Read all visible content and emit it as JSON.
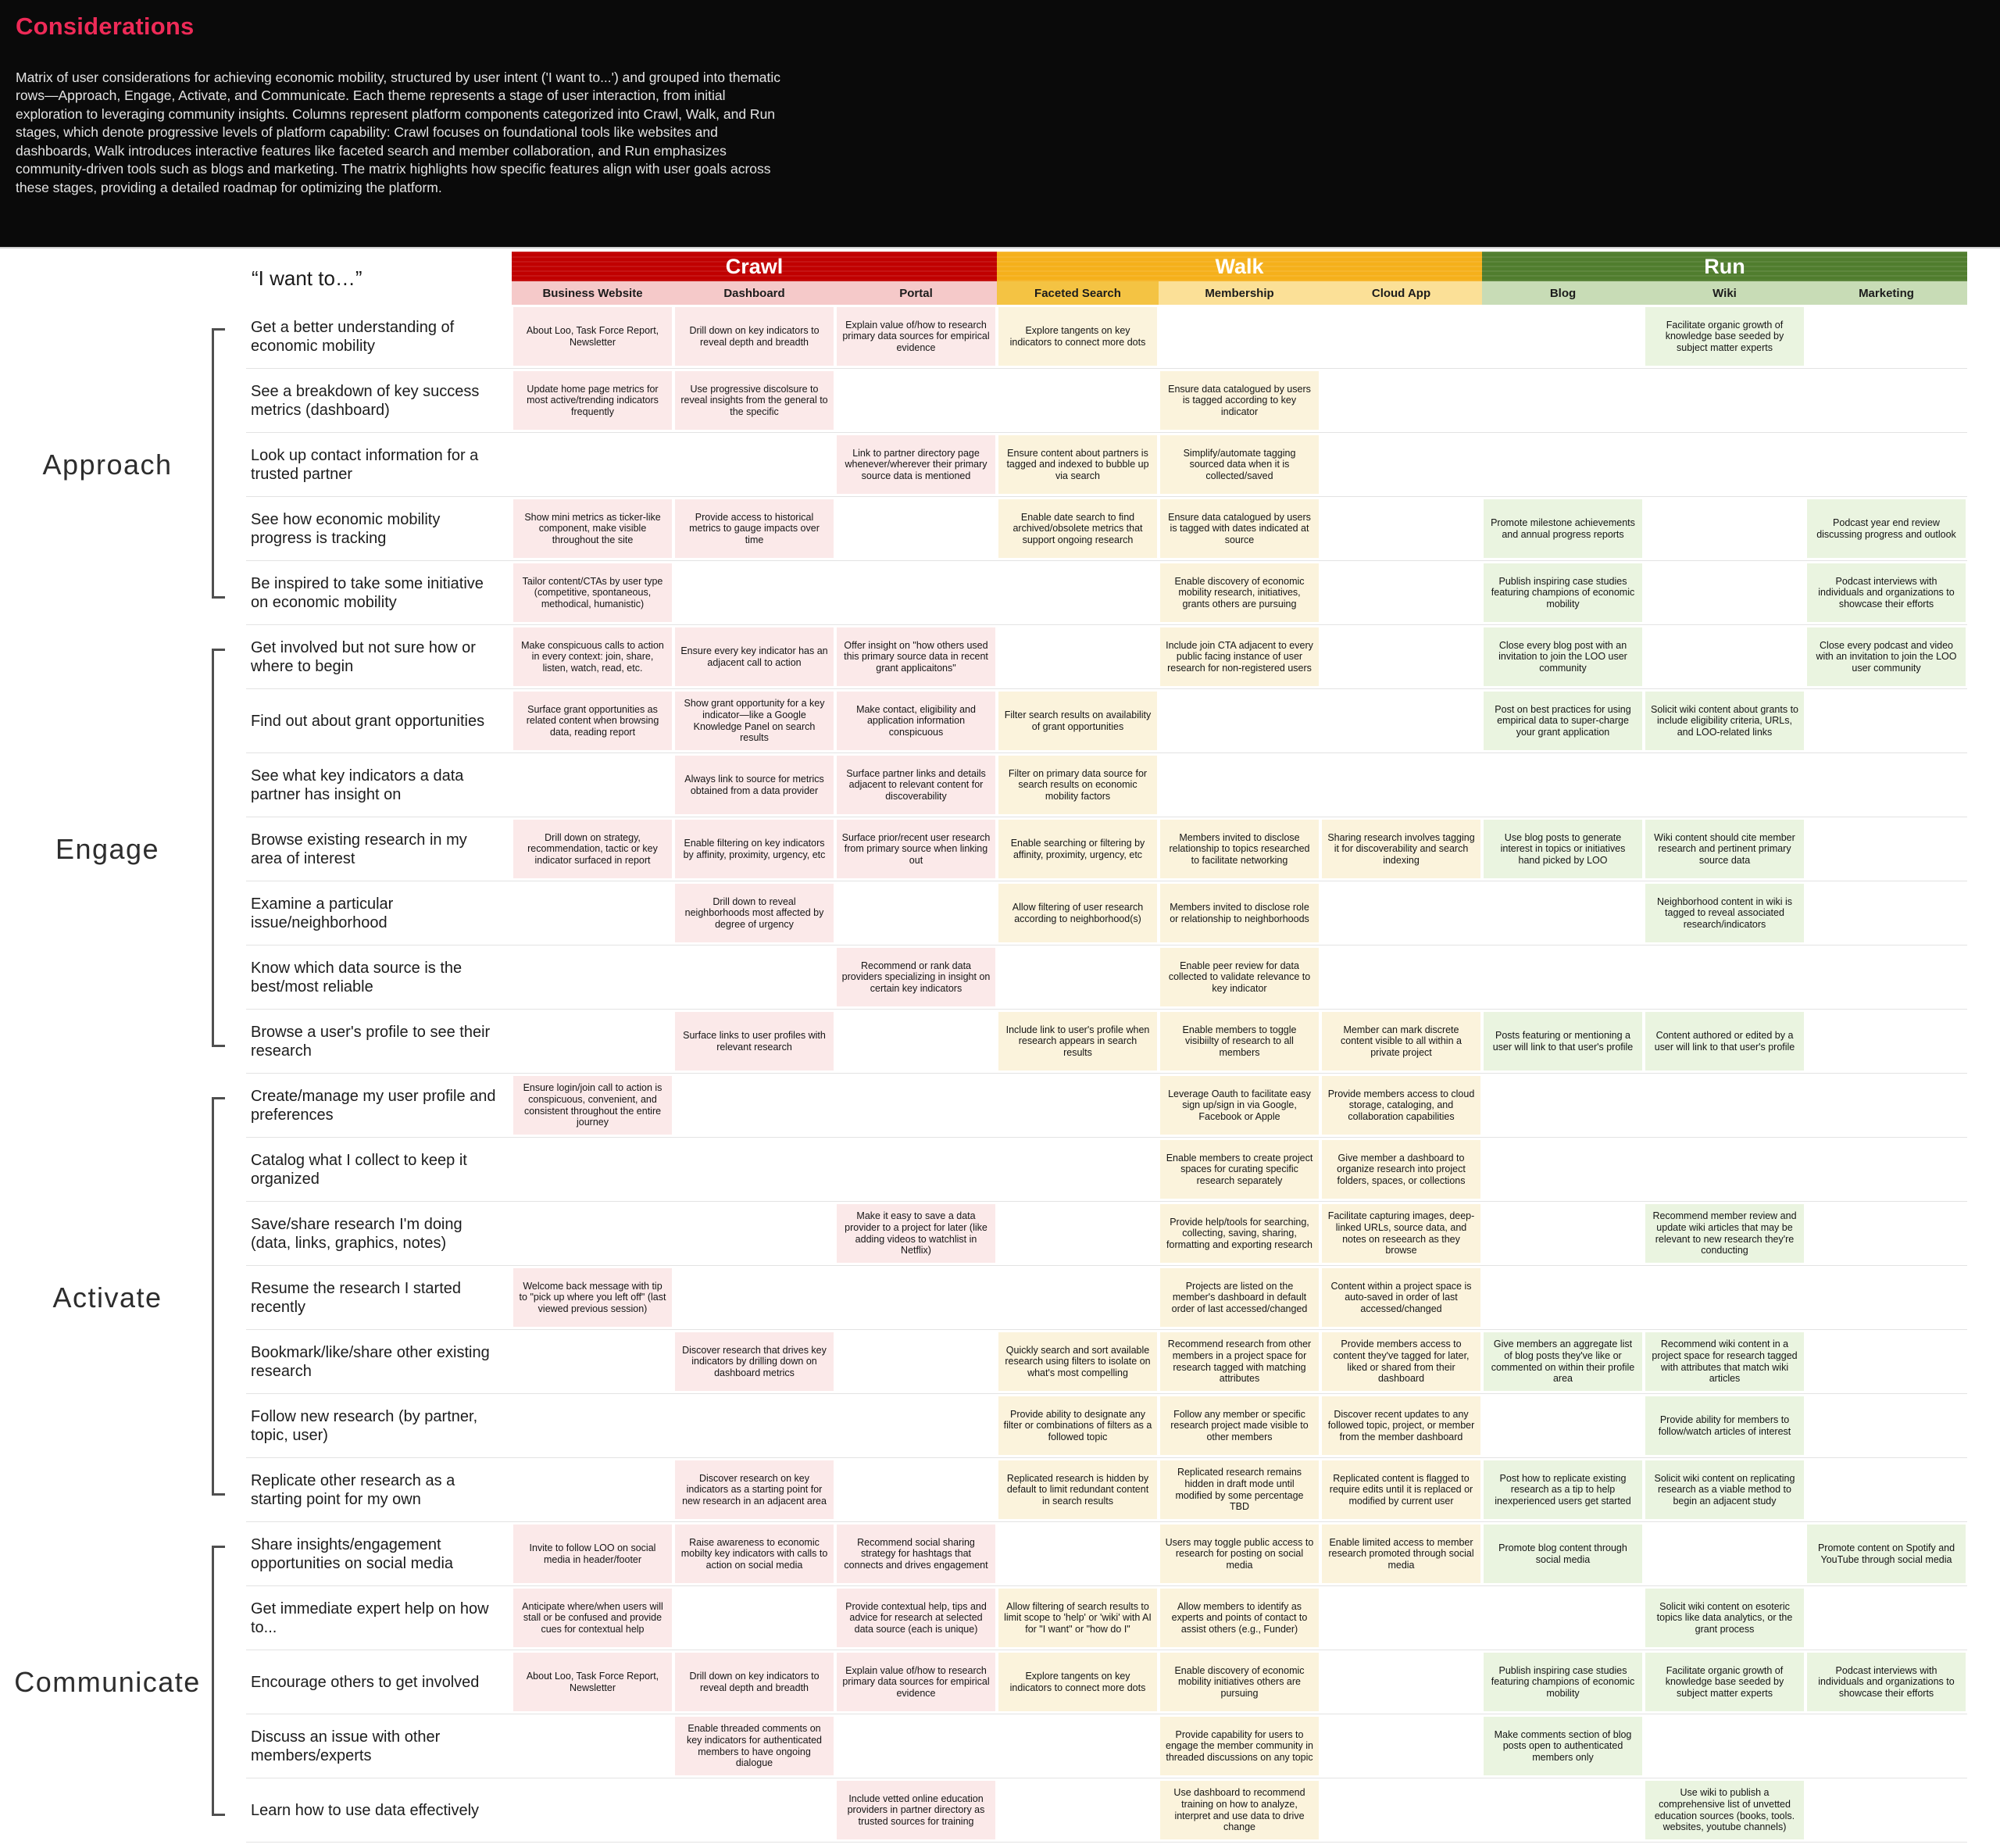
{
  "page": {
    "title": "Considerations",
    "description": "Matrix of user considerations for achieving economic mobility, structured by user intent ('I want to...') and grouped into thematic rows—Approach, Engage, Activate, and Communicate. Each theme represents a stage of user interaction, from initial exploration to leveraging community insights. Columns represent platform components categorized into Crawl, Walk, and Run stages, which denote progressive levels of platform capability: Crawl focuses on foundational tools like websites and dashboards, Walk introduces interactive features like faceted search and member collaboration, and Run emphasizes community-driven tools such as blogs and marketing. The matrix highlights how specific features align with user goals across these stages, providing a detailed roadmap for optimizing the platform."
  },
  "matrix": {
    "intent_header": "“I want to…”",
    "stages": [
      {
        "label": "Crawl",
        "header_bg": "#c00000",
        "subcols": [
          {
            "key": "business_website",
            "label": "Business Website",
            "sub_bg": "#f5c9c9",
            "cell_bg": "#fbe9e9"
          },
          {
            "key": "dashboard",
            "label": "Dashboard",
            "sub_bg": "#f5c9c9",
            "cell_bg": "#fbe9e9"
          },
          {
            "key": "portal",
            "label": "Portal",
            "sub_bg": "#f5c9c9",
            "cell_bg": "#fbe9e9"
          }
        ]
      },
      {
        "label": "Walk",
        "header_bg": "#f5b01b",
        "subcols": [
          {
            "key": "faceted_search",
            "label": "Faceted Search",
            "sub_bg": "#f4c343",
            "cell_bg": "#fbf3dc"
          },
          {
            "key": "membership",
            "label": "Membership",
            "sub_bg": "#fbe097",
            "cell_bg": "#fbf3dc"
          },
          {
            "key": "cloud_app",
            "label": "Cloud App",
            "sub_bg": "#fbe097",
            "cell_bg": "#fbf3dc"
          }
        ]
      },
      {
        "label": "Run",
        "header_bg": "#507d2e",
        "subcols": [
          {
            "key": "blog",
            "label": "Blog",
            "sub_bg": "#c8dcb6",
            "cell_bg": "#eaf4e0"
          },
          {
            "key": "wiki",
            "label": "Wiki",
            "sub_bg": "#c8dcb6",
            "cell_bg": "#eaf4e0"
          },
          {
            "key": "marketing",
            "label": "Marketing",
            "sub_bg": "#c8dcb6",
            "cell_bg": "#eaf4e0"
          }
        ]
      }
    ],
    "groups": [
      {
        "label": "Approach",
        "rows": [
          {
            "intent": "Get a better understanding of economic mobility",
            "cells": {
              "business_website": "About Loo, Task Force Report, Newsletter",
              "dashboard": "Drill down on key indicators to reveal depth and breadth",
              "portal": "Explain value of/how to research primary data sources for empirical evidence",
              "faceted_search": "Explore tangents on key indicators to connect more dots",
              "wiki": "Facilitate organic growth of knowledge base seeded by subject matter experts"
            }
          },
          {
            "intent": "See a breakdown of key success metrics (dashboard)",
            "cells": {
              "business_website": "Update home page metrics for most active/trending indicators frequently",
              "dashboard": "Use progressive discolsure to reveal insights from the general to the specific",
              "membership": "Ensure data catalogued by users is tagged according to key indicator"
            }
          },
          {
            "intent": "Look up contact information for a trusted partner",
            "cells": {
              "portal": "Link to partner directory page whenever/wherever their primary source data is mentioned",
              "faceted_search": "Ensure content about partners is tagged and indexed to bubble up via search",
              "membership": "Simplify/automate tagging sourced data when it is collected/saved"
            }
          },
          {
            "intent": "See how economic mobility progress is tracking",
            "cells": {
              "business_website": "Show mini metrics as ticker-like component, make visible throughout the site",
              "dashboard": "Provide access to historical metrics to gauge impacts over time",
              "faceted_search": "Enable date search to find archived/obsolete metrics that support ongoing research",
              "membership": "Ensure data catalogued by users is tagged with dates indicated at source",
              "blog": "Promote milestone achievements and annual progress reports",
              "marketing": "Podcast year end review discussing progress and outlook"
            }
          },
          {
            "intent": "Be inspired to take some initiative on economic mobility",
            "cells": {
              "business_website": "Tailor content/CTAs by user type (competitive, spontaneous, methodical, humanistic)",
              "membership": "Enable discovery of economic mobility research, initiatives, grants others are pursuing",
              "blog": "Publish inspiring case studies featuring champions of economic mobility",
              "marketing": "Podcast interviews with individuals and organizations to showcase their efforts"
            }
          }
        ]
      },
      {
        "label": "Engage",
        "rows": [
          {
            "intent": "Get involved but not sure how or where to begin",
            "cells": {
              "business_website": "Make conspicuous calls to action in every context: join, share, listen, watch, read, etc.",
              "dashboard": "Ensure every key indicator has an adjacent call to action",
              "portal": "Offer insight on \"how others used this primary source data in recent grant applicaitons\"",
              "membership": "Include join CTA adjacent to every public facing instance of user research for non-registered users",
              "blog": "Close every blog post with an invitation to join the LOO user community",
              "marketing": "Close every podcast and video with an invitation to join the LOO user community"
            }
          },
          {
            "intent": "Find out about grant opportunities",
            "cells": {
              "business_website": "Surface grant opportunities as related content when browsing data, reading report",
              "dashboard": "Show grant opportunity for a key indicator—like a Google Knowledge Panel on search results",
              "portal": "Make contact, eligibility and application information conspicuous",
              "faceted_search": "Filter search results on availability of grant opportunities",
              "blog": "Post on best practices for using empirical data to super-charge your grant application",
              "wiki": "Solicit wiki content about grants to include eligibility criteria, URLs, and LOO-related links"
            }
          },
          {
            "intent": "See what key indicators a data partner has insight on",
            "cells": {
              "dashboard": "Always link to source for metrics obtained from a data provider",
              "portal": "Surface partner links and details adjacent to relevant content for discoverability",
              "faceted_search": "Filter on primary data source for search results on economic mobility factors"
            }
          },
          {
            "intent": "Browse existing research in my area of interest",
            "cells": {
              "business_website": "Drill down on strategy, recommendation, tactic or key indicator surfaced in report",
              "dashboard": "Enable filtering on key indicators by affinity, proximity, urgency, etc",
              "portal": "Surface prior/recent user research from primary source when linking out",
              "faceted_search": "Enable searching or filtering by affinity, proximity, urgency, etc",
              "membership": "Members invited to disclose relationship to topics researched to facilitate networking",
              "cloud_app": "Sharing research involves tagging it for discoverability and search indexing",
              "blog": "Use blog posts to generate interest in topics or initiatives hand picked by LOO",
              "wiki": "Wiki content should cite member research and pertinent primary source data"
            }
          },
          {
            "intent": "Examine a particular issue/neighborhood",
            "cells": {
              "dashboard": "Drill down to reveal neighborhoods most affected by degree of urgency",
              "faceted_search": "Allow filtering of user research according to neighborhood(s)",
              "membership": "Members invited to disclose role or relationship to neighborhoods",
              "wiki": "Neighborhood content in wiki is tagged to reveal associated research/indicators"
            }
          },
          {
            "intent": "Know which data source is the best/most reliable",
            "cells": {
              "portal": "Recommend or rank data providers specializing in insight on certain key indicators",
              "membership": "Enable peer review for data collected to validate relevance to key indicator"
            }
          },
          {
            "intent": "Browse a user's profile to see their research",
            "cells": {
              "dashboard": "Surface links to user profiles with relevant research",
              "faceted_search": "Include link to user's profile when research appears in search results",
              "membership": "Enable members to toggle visibiilty of research to all members",
              "cloud_app": "Member can mark discrete content visible to all within a private project",
              "blog": "Posts featuring or mentioning a user will link to that user's profile",
              "wiki": "Content authored or edited by a user will link to that user's profile"
            }
          }
        ]
      },
      {
        "label": "Activate",
        "rows": [
          {
            "intent": "Create/manage my user profile and preferences",
            "cells": {
              "business_website": "Ensure login/join call to action is conspicuous, convenient, and consistent throughout the entire journey",
              "membership": "Leverage Oauth to facilitate easy sign up/sign in via Google, Facebook or Apple",
              "cloud_app": "Provide members access to cloud storage, cataloging, and collaboration capabilities"
            }
          },
          {
            "intent": "Catalog what I collect to keep it organized",
            "cells": {
              "membership": "Enable members to create project spaces for curating specific research separately",
              "cloud_app": "Give member a dashboard to organize research into project folders, spaces, or collections"
            }
          },
          {
            "intent": "Save/share research I'm doing (data, links, graphics, notes)",
            "cells": {
              "portal": "Make it easy to save a data provider to a project for later (like adding videos to watchlist in Netflix)",
              "membership": "Provide help/tools for searching, collecting, saving, sharing, formatting and exporting research",
              "cloud_app": "Facilitate capturing images, deep-linked URLs, source data, and notes on reseearch as they browse",
              "wiki": "Recommend member review and update wiki articles that may be relevant to new research they're conducting"
            }
          },
          {
            "intent": "Resume the research I started recently",
            "cells": {
              "business_website": "Welcome back message with tip to \"pick up where you left off\" (last viewed previous session)",
              "membership": "Projects are listed on the member's dashboard in default order of last accessed/changed",
              "cloud_app": "Content within a project space is auto-saved in order of last accessed/changed"
            }
          },
          {
            "intent": "Bookmark/like/share other existing research",
            "cells": {
              "dashboard": "Discover research that drives key indicators by drilling down on dashboard metrics",
              "faceted_search": "Quickly search and sort available research using filters to isolate on what's most compelling",
              "membership": "Recommend research from other members in a project space for research tagged with matching attributes",
              "cloud_app": "Provide members access to content they've tagged for later, liked or shared from their dashboard",
              "blog": "Give members an aggregate list of blog posts they've like or commented on within their profile area",
              "wiki": "Recommend wiki content in a project space for research tagged with attributes that match wiki articles"
            }
          },
          {
            "intent": "Follow new research (by partner, topic, user)",
            "cells": {
              "faceted_search": "Provide ability to designate any filter or combinations of filters as a followed topic",
              "membership": "Follow any member or specific research project made visible to other members",
              "cloud_app": "Discover recent updates to any followed topic, project, or member from the member dashboard",
              "wiki": "Provide ability for members to follow/watch articles of interest"
            }
          },
          {
            "intent": "Replicate other research as a starting point for my own",
            "cells": {
              "dashboard": "Discover research on key indicators as a starting point for new research in an adjacent area",
              "faceted_search": "Replicated research is hidden by default to limit redundant content in search results",
              "membership": "Replicated research remains hidden in draft mode until modified by some percentage TBD",
              "cloud_app": "Replicated content is flagged to require edits until it is replaced or modified by current user",
              "blog": "Post how to replicate existing research as a tip to help inexperienced  users get started",
              "wiki": "Solicit wiki content on replicating research as a viable method to begin an adjacent study"
            }
          }
        ]
      },
      {
        "label": "Communicate",
        "rows": [
          {
            "intent": "Share insights/engagement opportunities on social media",
            "cells": {
              "business_website": "Invite to follow LOO on social media in header/footer",
              "dashboard": "Raise awareness to economic mobilty key indicators with calls to action on social media",
              "portal": "Recommend social sharing strategy for hashtags that connects and drives engagement",
              "membership": "Users may toggle public access to research for posting on social media",
              "cloud_app": "Enable limited access to member research promoted through social media",
              "blog": "Promote blog content through social media",
              "marketing": "Promote content on Spotify and YouTube through social media"
            }
          },
          {
            "intent": "Get immediate expert help on how to...",
            "cells": {
              "business_website": "Anticipate where/when users will stall or be confused and provide cues for contextual help",
              "portal": "Provide contextual help, tips and advice for research at selected data source (each is unique)",
              "faceted_search": "Allow filtering of search results to limit scope to 'help' or 'wiki' with AI for \"I want\" or \"how do I\"",
              "membership": "Allow members to identify as experts and points of contact to assist others (e.g., Funder)",
              "wiki": "Solicit wiki content on esoteric topics like data analytics, or the grant process"
            }
          },
          {
            "intent": "Encourage others to get involved",
            "cells": {
              "business_website": "About Loo, Task Force Report, Newsletter",
              "dashboard": "Drill down on key indicators to reveal depth and breadth",
              "portal": "Explain value of/how to research primary data sources for empirical evidence",
              "faceted_search": "Explore tangents on key indicators to connect more dots",
              "membership": "Enable discovery of economic mobility initiatives others are pursuing",
              "blog": "Publish inspiring case studies featuring champions of economic mobility",
              "wiki": "Facilitate organic growth of knowledge base seeded by subject matter experts",
              "marketing": "Podcast interviews with individuals and organizations to showcase their efforts"
            }
          },
          {
            "intent": "Discuss an issue with other members/experts",
            "cells": {
              "dashboard": "Enable threaded comments on key indicators for authenticated members to have ongoing dialogue",
              "membership": "Provide capability for users to engage the member community in threaded discussions on any topic",
              "blog": "Make comments section of blog posts open to authenticated members only"
            }
          },
          {
            "intent": "Learn how to use data effectively",
            "cells": {
              "portal": "Include vetted online education providers in partner directory as trusted sources for training",
              "membership": "Use dashboard to recommend training on how to analyze, interpret and use data to drive change",
              "wiki": "Use wiki to publish a comprehensive list of unvetted education sources (books, tools. websites, youtube channels)"
            }
          }
        ]
      }
    ]
  }
}
